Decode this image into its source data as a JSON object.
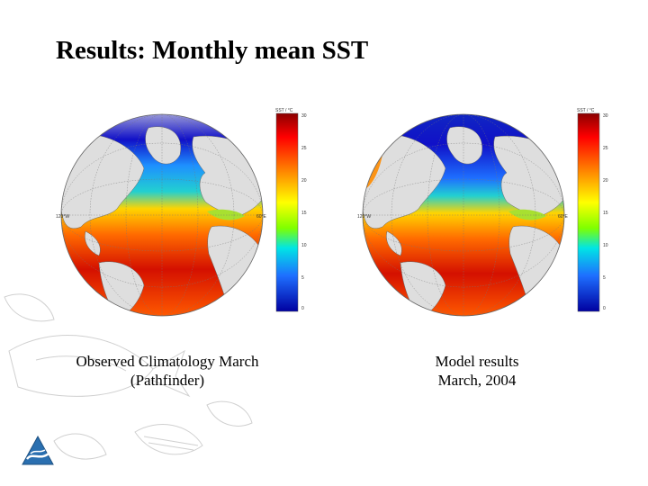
{
  "slide": {
    "title": "Results: Monthly mean SST"
  },
  "colors": {
    "cold": "#1010c8",
    "cool": "#1e90ff",
    "mid": "#22d0d0",
    "warm_mid": "#a8e030",
    "warm": "#ffd400",
    "hot": "#ff6a00",
    "hottest": "#c40000",
    "land": "#dedede",
    "ocean_outline": "#555555"
  },
  "panels": [
    {
      "caption_line1": "Observed Climatology March",
      "caption_line2": "(Pathfinder)",
      "colorbar_title": "SST / °C",
      "ticks": [
        "30",
        "25",
        "20",
        "15",
        "10",
        "5",
        "0"
      ],
      "lon_labels": [
        "120°W",
        "60°E"
      ]
    },
    {
      "caption_line1": "Model results",
      "caption_line2": "March, 2004",
      "colorbar_title": "SST / °C",
      "ticks": [
        "30",
        "25",
        "20",
        "15",
        "10",
        "5",
        "0"
      ],
      "lon_labels": [
        "120°W",
        "60°E"
      ]
    }
  ]
}
